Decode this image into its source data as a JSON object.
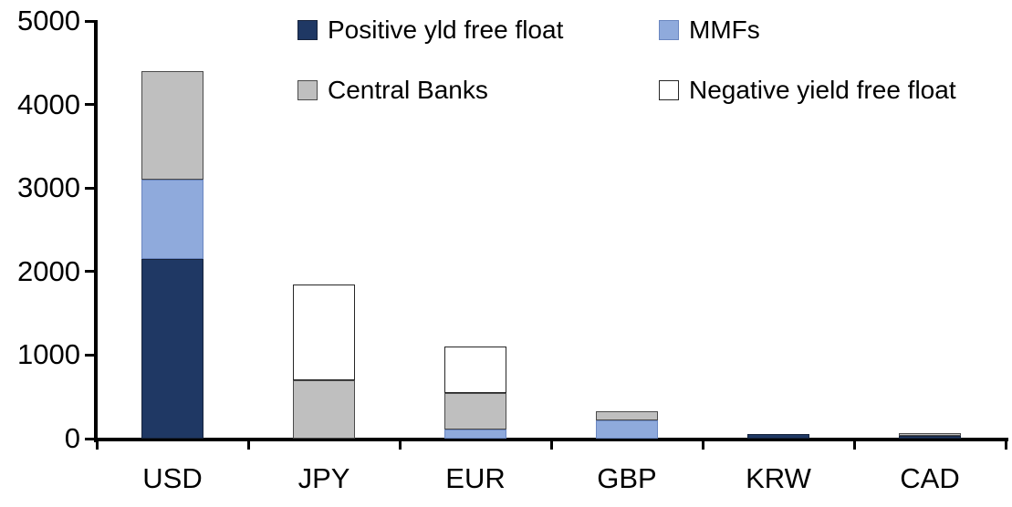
{
  "chart_data": {
    "type": "bar",
    "stacked": true,
    "orientation": "vertical",
    "categories": [
      "USD",
      "JPY",
      "EUR",
      "GBP",
      "KRW",
      "CAD"
    ],
    "series": [
      {
        "name": "Positive yld free float",
        "color": "#1F3864",
        "border_color": "#16233C",
        "values": [
          2150,
          0,
          0,
          0,
          50,
          35
        ]
      },
      {
        "name": "MMFs",
        "color": "#8FAADC",
        "border_color": "#6A86C0",
        "values": [
          950,
          0,
          110,
          220,
          0,
          0
        ]
      },
      {
        "name": "Central Banks",
        "color": "#BFBFBF",
        "border_color": "#4A4A4A",
        "values": [
          1300,
          700,
          440,
          110,
          0,
          35
        ]
      },
      {
        "name": "Negative yield free float",
        "color": "#FFFFFF",
        "border_color": "#262626",
        "values": [
          0,
          1150,
          550,
          0,
          0,
          0
        ]
      }
    ],
    "totals_by_category": [
      4400,
      1850,
      1100,
      330,
      50,
      70
    ],
    "ylim": [
      0,
      5000
    ],
    "yticks": [
      0,
      1000,
      2000,
      3000,
      4000,
      5000
    ],
    "ytick_labels": [
      "0",
      "1000",
      "2000",
      "3000",
      "4000",
      "5000"
    ],
    "grid": false,
    "legend_position": "top",
    "axis_color": "#000000",
    "background_color": "#FFFFFF"
  }
}
